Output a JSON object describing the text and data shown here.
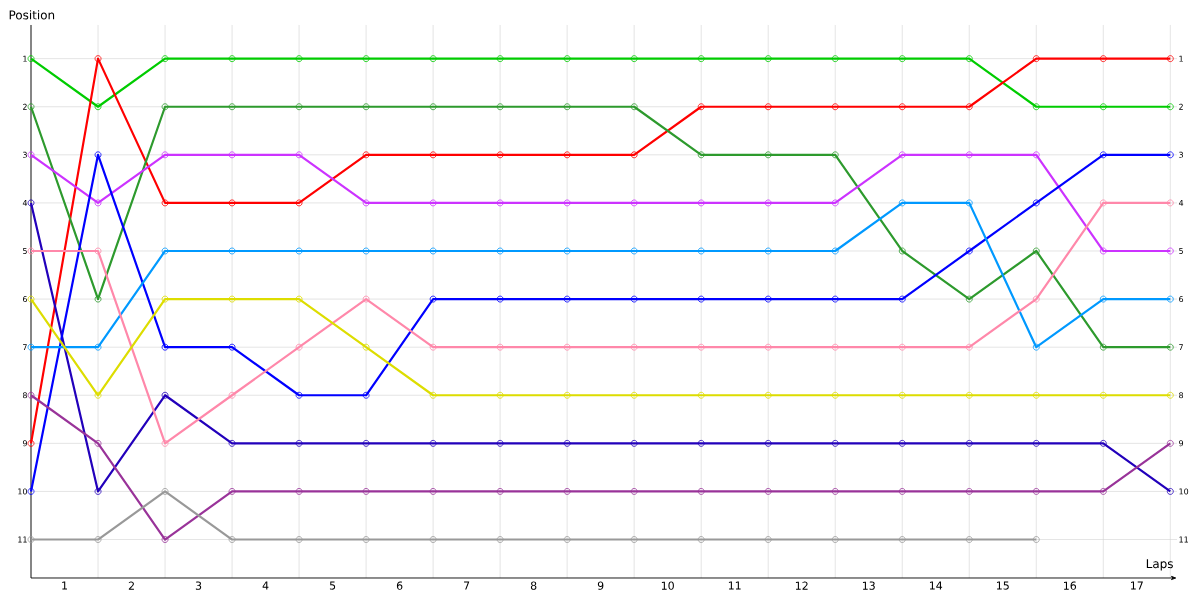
{
  "chart_data": {
    "type": "line",
    "xlabel": "Laps",
    "ylabel": "Position",
    "x": [
      0,
      1,
      2,
      3,
      4,
      5,
      6,
      7,
      8,
      9,
      10,
      11,
      12,
      13,
      14,
      15,
      16,
      17
    ],
    "xlim": [
      0,
      17.1
    ],
    "ylim": [
      11.8,
      0.3
    ],
    "y2lim": [
      11.8,
      0.3
    ],
    "xticks": [
      {
        "value": 0,
        "label": null
      },
      {
        "value": 1,
        "label": null
      },
      {
        "value": 2,
        "label": null
      },
      {
        "value": 3,
        "label": null
      },
      {
        "value": 4,
        "label": null
      },
      {
        "value": 5,
        "label": null
      },
      {
        "value": 6,
        "label": null
      },
      {
        "value": 7,
        "label": null
      },
      {
        "value": 8,
        "label": null
      },
      {
        "value": 9,
        "label": null
      },
      {
        "value": 10,
        "label": null
      },
      {
        "value": 11,
        "label": null
      },
      {
        "value": 12,
        "label": null
      },
      {
        "value": 13,
        "label": null
      },
      {
        "value": 14,
        "label": null
      },
      {
        "value": 15,
        "label": null
      },
      {
        "value": 16,
        "label": null
      },
      {
        "value": 17,
        "label": null
      },
      {
        "value": 0.5,
        "label": "1"
      },
      {
        "value": 1.5,
        "label": "2"
      },
      {
        "value": 2.5,
        "label": "3"
      },
      {
        "value": 3.5,
        "label": "4"
      },
      {
        "value": 4.5,
        "label": "5"
      },
      {
        "value": 5.5,
        "label": "6"
      },
      {
        "value": 6.5,
        "label": "7"
      },
      {
        "value": 7.5,
        "label": "8"
      },
      {
        "value": 8.5,
        "label": "9"
      },
      {
        "value": 9.5,
        "label": "10"
      },
      {
        "value": 10.5,
        "label": "11"
      },
      {
        "value": 11.5,
        "label": "12"
      },
      {
        "value": 12.5,
        "label": "13"
      },
      {
        "value": 13.5,
        "label": "14"
      },
      {
        "value": 14.5,
        "label": "15"
      },
      {
        "value": 15.5,
        "label": "16"
      },
      {
        "value": 16.5,
        "label": "17"
      }
    ],
    "yticks": [
      1,
      2,
      3,
      4,
      5,
      6,
      7,
      8,
      9,
      10,
      11
    ],
    "y2ticks": [
      1,
      2,
      3,
      4,
      5,
      6,
      7,
      8,
      9,
      10,
      11
    ],
    "grid": true,
    "marker": "circle",
    "line_style": "solid",
    "series": [
      {
        "color": "#00cc00",
        "values": [
          1,
          2,
          1,
          1,
          1,
          1,
          1,
          1,
          1,
          1,
          1,
          1,
          1,
          1,
          1,
          2,
          2,
          2
        ]
      },
      {
        "color": "#ff0000",
        "values": [
          9,
          1,
          4,
          4,
          4,
          3,
          3,
          3,
          3,
          3,
          2,
          2,
          2,
          2,
          2,
          1,
          1,
          1
        ]
      },
      {
        "color": "#2d9a2d",
        "values": [
          2,
          6,
          2,
          2,
          2,
          2,
          2,
          2,
          2,
          2,
          3,
          3,
          3,
          5,
          6,
          5,
          7,
          7
        ]
      },
      {
        "color": "#cc33ff",
        "values": [
          3,
          4,
          3,
          3,
          3,
          4,
          4,
          4,
          4,
          4,
          4,
          4,
          4,
          3,
          3,
          3,
          5,
          5
        ]
      },
      {
        "color": "#2200bb",
        "values": [
          4,
          10,
          8,
          9,
          9,
          9,
          9,
          9,
          9,
          9,
          9,
          9,
          9,
          9,
          9,
          9,
          9,
          10
        ]
      },
      {
        "color": "#0000ff",
        "values": [
          10,
          3,
          7,
          7,
          8,
          8,
          6,
          6,
          6,
          6,
          6,
          6,
          6,
          6,
          5,
          4,
          3,
          3
        ]
      },
      {
        "color": "#0099ff",
        "values": [
          7,
          7,
          5,
          5,
          5,
          5,
          5,
          5,
          5,
          5,
          5,
          5,
          5,
          4,
          4,
          7,
          6,
          6
        ]
      },
      {
        "color": "#ff88aa",
        "values": [
          5,
          5,
          9,
          8,
          7,
          6,
          7,
          7,
          7,
          7,
          7,
          7,
          7,
          7,
          7,
          6,
          4,
          4
        ]
      },
      {
        "color": "#dddd00",
        "values": [
          6,
          8,
          6,
          6,
          6,
          7,
          8,
          8,
          8,
          8,
          8,
          8,
          8,
          8,
          8,
          8,
          8,
          8
        ]
      },
      {
        "color": "#993399",
        "values": [
          8,
          9,
          11,
          10,
          10,
          10,
          10,
          10,
          10,
          10,
          10,
          10,
          10,
          10,
          10,
          10,
          10,
          9
        ]
      },
      {
        "color": "#999999",
        "values": [
          11,
          11,
          10,
          11,
          11,
          11,
          11,
          11,
          11,
          11,
          11,
          11,
          11,
          11,
          11,
          11,
          null,
          null
        ]
      }
    ]
  }
}
